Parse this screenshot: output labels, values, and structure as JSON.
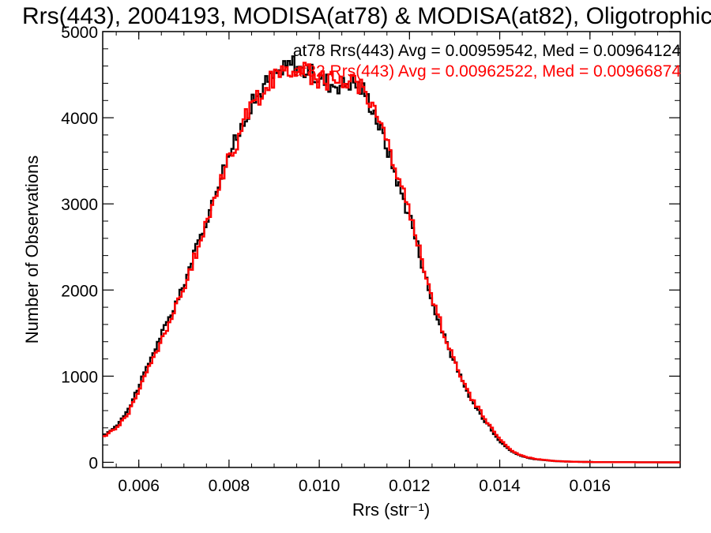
{
  "chart_data": {
    "type": "line",
    "step": true,
    "title": "Rrs(443), 2004193, MODISA(at78) & MODISA(at82), Oligotrophic",
    "xlabel": "Rrs (str⁻¹)",
    "ylabel": "Number of Observations",
    "xlim": [
      0.0052,
      0.018
    ],
    "ylim": [
      -60,
      5000
    ],
    "x_ticks": [
      0.006,
      0.008,
      0.01,
      0.012,
      0.014,
      0.016
    ],
    "x_tick_labels": [
      "0.006",
      "0.008",
      "0.010",
      "0.012",
      "0.014",
      "0.016"
    ],
    "y_ticks": [
      0,
      1000,
      2000,
      3000,
      4000,
      5000
    ],
    "y_tick_labels": [
      "0",
      "1000",
      "2000",
      "3000",
      "4000",
      "5000"
    ],
    "grid": false,
    "legend_position": "top-right",
    "series": [
      {
        "name": "at78",
        "color": "#000000",
        "legend_text": "at78 Rrs(443) Avg = 0.00959542, Med = 0.00964124",
        "x": [
          0.0052,
          0.0055,
          0.0058,
          0.006,
          0.0062,
          0.0064,
          0.0066,
          0.0068,
          0.007,
          0.0072,
          0.0074,
          0.0076,
          0.0078,
          0.008,
          0.0082,
          0.0084,
          0.0086,
          0.0088,
          0.009,
          0.0092,
          0.0094,
          0.0096,
          0.0098,
          0.01,
          0.0102,
          0.0104,
          0.0106,
          0.0108,
          0.011,
          0.0112,
          0.0114,
          0.0116,
          0.0118,
          0.012,
          0.0122,
          0.0124,
          0.0126,
          0.0128,
          0.013,
          0.0132,
          0.0134,
          0.0136,
          0.0138,
          0.014,
          0.0142,
          0.0144,
          0.0146,
          0.0148,
          0.015,
          0.0152,
          0.0154,
          0.0156,
          0.0158,
          0.016,
          0.0162,
          0.0165,
          0.017,
          0.0175,
          0.018
        ],
        "y": [
          300,
          420,
          640,
          890,
          1120,
          1370,
          1580,
          1820,
          2050,
          2390,
          2650,
          2960,
          3320,
          3580,
          3780,
          4080,
          4220,
          4390,
          4480,
          4550,
          4640,
          4570,
          4520,
          4450,
          4420,
          4380,
          4410,
          4420,
          4300,
          4100,
          3810,
          3500,
          3160,
          2870,
          2480,
          2060,
          1700,
          1420,
          1160,
          890,
          700,
          540,
          400,
          250,
          150,
          90,
          55,
          35,
          25,
          15,
          10,
          7,
          5,
          3,
          2,
          1,
          1,
          0,
          0
        ]
      },
      {
        "name": "at82",
        "color": "#ff0000",
        "legend_text": "at82 Rrs(443) Avg = 0.00962522, Med = 0.00966874",
        "x": [
          0.0052,
          0.0055,
          0.0058,
          0.006,
          0.0062,
          0.0064,
          0.0066,
          0.0068,
          0.007,
          0.0072,
          0.0074,
          0.0076,
          0.0078,
          0.008,
          0.0082,
          0.0084,
          0.0086,
          0.0088,
          0.009,
          0.0092,
          0.0094,
          0.0096,
          0.0098,
          0.01,
          0.0102,
          0.0104,
          0.0106,
          0.0108,
          0.011,
          0.0112,
          0.0114,
          0.0116,
          0.0118,
          0.012,
          0.0122,
          0.0124,
          0.0126,
          0.0128,
          0.013,
          0.0132,
          0.0134,
          0.0136,
          0.0138,
          0.014,
          0.0142,
          0.0144,
          0.0146,
          0.0148,
          0.015,
          0.0152,
          0.0154,
          0.0156,
          0.0158,
          0.016,
          0.0162,
          0.0165,
          0.017,
          0.0175,
          0.018
        ],
        "y": [
          290,
          400,
          600,
          840,
          1070,
          1300,
          1530,
          1770,
          2000,
          2330,
          2600,
          2920,
          3280,
          3540,
          3750,
          4050,
          4200,
          4370,
          4460,
          4530,
          4590,
          4550,
          4510,
          4460,
          4440,
          4400,
          4430,
          4450,
          4330,
          4140,
          3860,
          3560,
          3210,
          2920,
          2530,
          2100,
          1740,
          1450,
          1190,
          920,
          730,
          560,
          420,
          270,
          160,
          95,
          60,
          38,
          27,
          16,
          11,
          7,
          5,
          3,
          2,
          1,
          1,
          0,
          0
        ]
      }
    ]
  }
}
